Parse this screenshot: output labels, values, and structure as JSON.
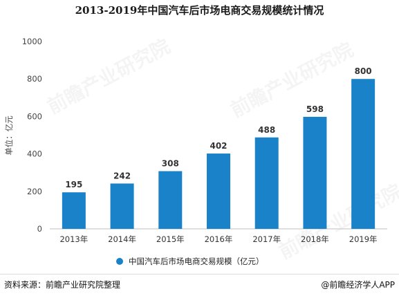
{
  "title": "2013-2019年中国汽车后市场电商交易规模统计情况",
  "chart_data": {
    "type": "bar",
    "categories": [
      "2013年",
      "2014年",
      "2015年",
      "2016年",
      "2017年",
      "2018年",
      "2019年"
    ],
    "series": [
      {
        "name": "中国汽车后市场电商交易规模（亿元）",
        "values": [
          195,
          242,
          308,
          402,
          488,
          598,
          800
        ]
      }
    ],
    "ylabel": "单位：亿元",
    "xlabel": "",
    "ylim": [
      0,
      1000
    ],
    "yticks": [
      0,
      200,
      400,
      600,
      800,
      1000
    ],
    "grid": false,
    "legend_position": "bottom",
    "data_labels": true,
    "bar_color": "#1a82c9"
  },
  "footer": {
    "source": "资料来源：前瞻产业研究院整理",
    "credit": "@前瞻经济学人APP"
  },
  "watermark": {
    "brand": "前瞻产业研究院"
  }
}
